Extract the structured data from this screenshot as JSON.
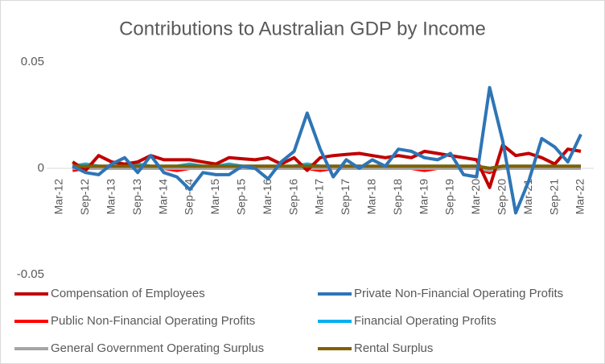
{
  "chart_data": {
    "type": "line",
    "title": "Contributions to Australian GDP by Income",
    "categories": [
      "Mar-12",
      null,
      "Sep-12",
      null,
      "Mar-13",
      null,
      "Sep-13",
      null,
      "Mar-14",
      null,
      "Sep-14",
      null,
      "Mar-15",
      null,
      "Sep-15",
      null,
      "Mar-16",
      null,
      "Sep-16",
      null,
      "Mar-17",
      null,
      "Sep-17",
      null,
      "Mar-18",
      null,
      "Sep-18",
      null,
      "Mar-19",
      null,
      "Sep-19",
      null,
      "Mar-20",
      null,
      "Sep-20",
      null,
      "Mar-21",
      null,
      "Sep-21",
      null,
      "Mar-22"
    ],
    "ylim": [
      -0.05,
      0.05
    ],
    "yticks": [
      -0.05,
      0,
      0.05
    ],
    "legend": "bottom",
    "series": [
      {
        "name": "Compensation of Employees",
        "color": "#c00000",
        "values": [
          null,
          0.003,
          -0.001,
          0.006,
          0.003,
          0.002,
          0.003,
          0.006,
          0.004,
          0.004,
          0.004,
          0.003,
          0.002,
          0.005,
          0.0045,
          0.004,
          0.005,
          0.002,
          0.005,
          -0.001,
          0.005,
          0.006,
          0.0065,
          0.007,
          0.006,
          0.005,
          0.006,
          0.005,
          0.008,
          0.007,
          0.006,
          0.005,
          0.004,
          -0.009,
          0.011,
          0.006,
          0.007,
          0.005,
          0.002,
          0.009,
          0.008
        ]
      },
      {
        "name": "Private Non-Financial Operating Profits",
        "color": "#2e75b6",
        "values": [
          null,
          0.001,
          -0.002,
          -0.003,
          0.002,
          0.005,
          -0.002,
          0.006,
          -0.002,
          -0.004,
          -0.01,
          -0.002,
          -0.003,
          -0.003,
          0.001,
          0.0,
          -0.005,
          0.003,
          0.008,
          0.026,
          0.009,
          -0.004,
          0.004,
          0.0,
          0.004,
          0.001,
          0.009,
          0.008,
          0.005,
          0.004,
          0.007,
          -0.003,
          -0.004,
          0.038,
          0.013,
          -0.021,
          -0.006,
          0.014,
          0.01,
          0.003,
          0.016
        ]
      },
      {
        "name": "Public Non-Financial Operating Profits",
        "color": "#ff0000",
        "values": [
          null,
          -0.001,
          0.0,
          0.001,
          0.0,
          0.0,
          0.001,
          0.0,
          0.0,
          -0.001,
          0.0,
          0.001,
          0.0,
          0.0,
          0.001,
          0.0,
          0.0,
          0.001,
          0.0,
          0.0,
          -0.001,
          0.0,
          0.0,
          0.001,
          0.0,
          0.0,
          0.0,
          0.0,
          -0.001,
          0.0,
          0.0,
          0.0,
          0.0,
          -0.002,
          0.001,
          0.0,
          0.0,
          0.0,
          0.0,
          0.0,
          0.0
        ]
      },
      {
        "name": "Financial Operating Profits",
        "color": "#00b0f0",
        "values": [
          null,
          0.001,
          0.002,
          0.001,
          0.001,
          0.001,
          0.002,
          0.001,
          0.001,
          0.001,
          0.002,
          0.001,
          0.001,
          0.002,
          0.001,
          0.001,
          0.001,
          0.001,
          0.001,
          0.002,
          0.001,
          0.001,
          0.001,
          0.001,
          0.0,
          0.001,
          0.001,
          0.001,
          0.001,
          0.001,
          0.001,
          0.001,
          0.001,
          0.0,
          0.001,
          0.001,
          0.001,
          0.001,
          0.001,
          0.001,
          0.001
        ]
      },
      {
        "name": "General Government Operating Surplus",
        "color": "#a5a5a5",
        "values": [
          null,
          0.0,
          0.0,
          0.0,
          0.0,
          0.0,
          0.0,
          0.0,
          0.0,
          0.0,
          0.0,
          0.0,
          0.0,
          0.0,
          0.0,
          0.0,
          0.0,
          0.0,
          0.0,
          0.0,
          0.0,
          0.0,
          0.0,
          0.0,
          0.0,
          0.0,
          0.0,
          0.0,
          0.0,
          0.0,
          0.0,
          0.0,
          0.0,
          -0.001,
          0.0,
          0.0,
          0.0,
          0.0,
          0.0,
          0.0,
          0.0
        ]
      },
      {
        "name": "Rental Surplus",
        "color": "#806000",
        "values": [
          null,
          0.001,
          0.001,
          0.001,
          0.001,
          0.001,
          0.001,
          0.001,
          0.001,
          0.001,
          0.001,
          0.001,
          0.001,
          0.001,
          0.001,
          0.001,
          0.001,
          0.001,
          0.001,
          0.001,
          0.001,
          0.001,
          0.001,
          0.001,
          0.001,
          0.001,
          0.001,
          0.001,
          0.001,
          0.001,
          0.001,
          0.001,
          0.001,
          0.0,
          0.001,
          0.001,
          0.001,
          0.001,
          0.001,
          0.001,
          0.001
        ]
      }
    ]
  }
}
